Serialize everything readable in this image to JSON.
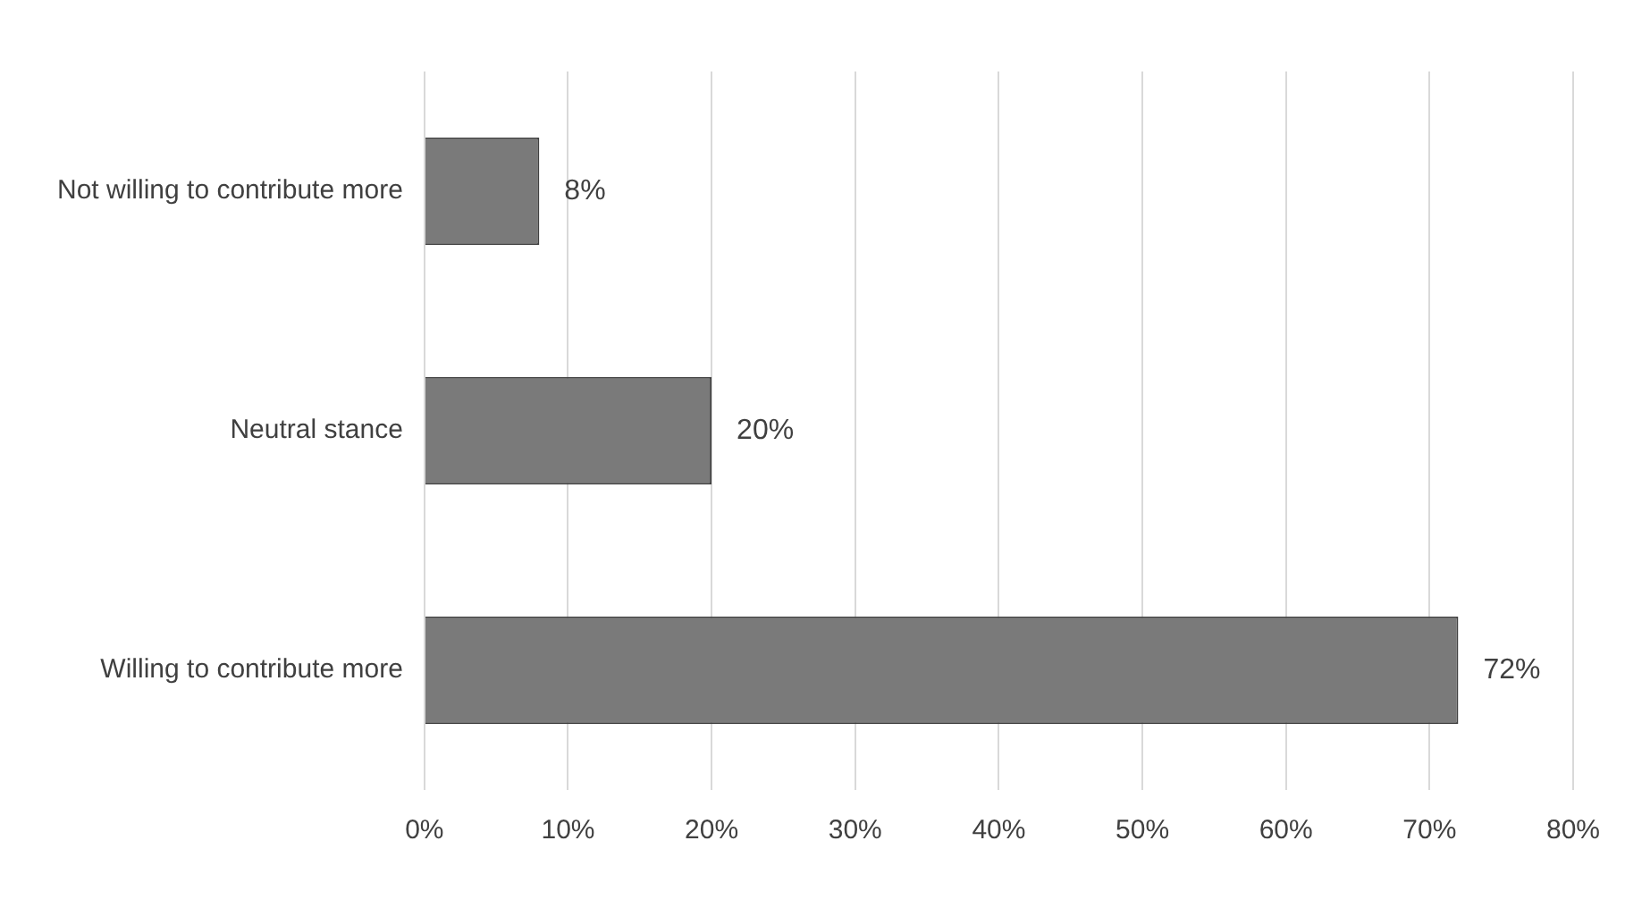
{
  "chart_data": {
    "type": "bar",
    "orientation": "horizontal",
    "categories": [
      "Not willing to contribute more",
      "Neutral stance",
      "Willing to contribute more"
    ],
    "values": [
      8,
      20,
      72
    ],
    "color": "#7a7a7a",
    "value_labels": [
      "8%",
      "20%",
      "72%"
    ],
    "xlim": [
      0,
      80
    ],
    "xticks": [
      {
        "value": 0,
        "label": "0%"
      },
      {
        "value": 10,
        "label": "10%"
      },
      {
        "value": 20,
        "label": "20%"
      },
      {
        "value": 30,
        "label": "30%"
      },
      {
        "value": 40,
        "label": "40%"
      },
      {
        "value": 50,
        "label": "50%"
      },
      {
        "value": 60,
        "label": "60%"
      },
      {
        "value": 70,
        "label": "70%"
      },
      {
        "value": 80,
        "label": "80%"
      }
    ],
    "grid": "x",
    "legend": false
  }
}
